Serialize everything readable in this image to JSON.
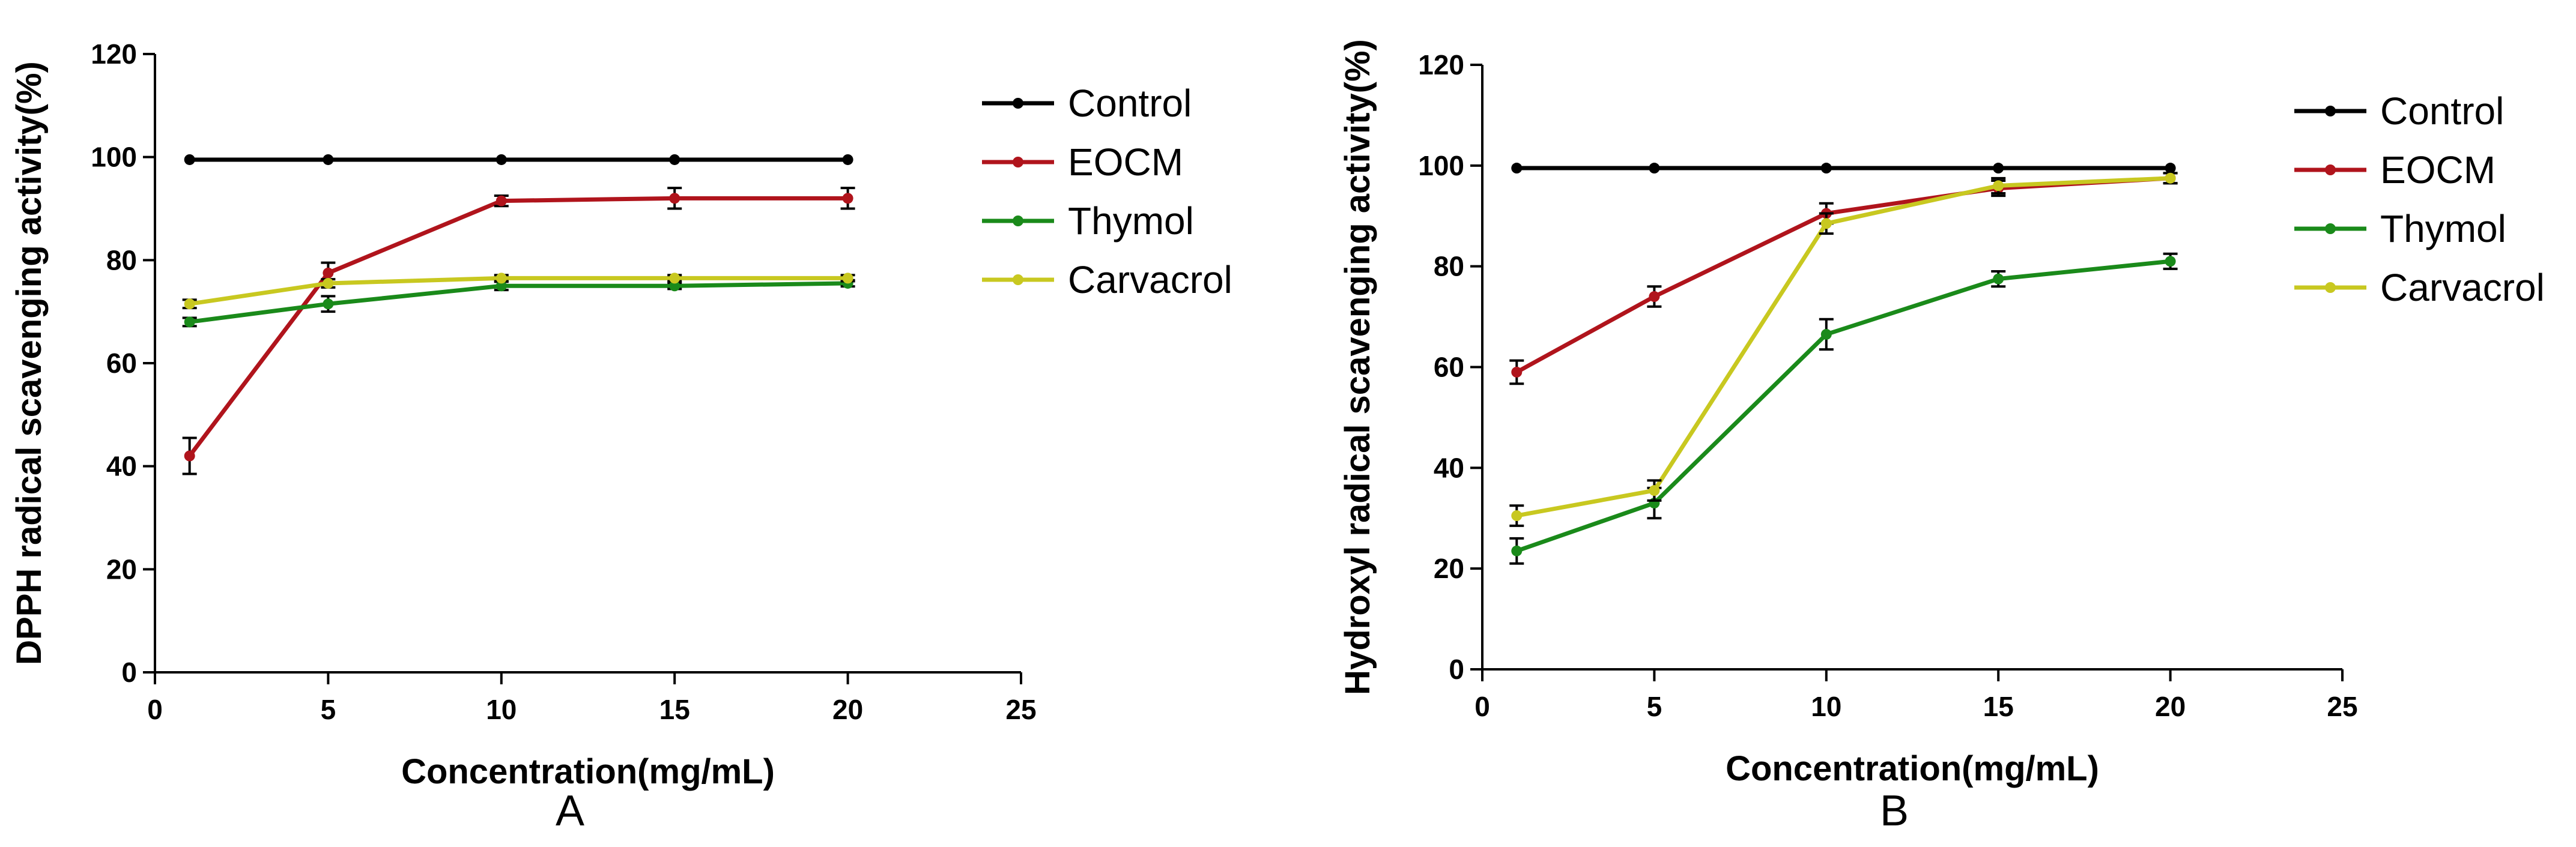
{
  "colors": {
    "Control": "#000000",
    "EOCM": "#b0141c",
    "Thymol": "#1a8a1a",
    "Carvacrol": "#c8c820",
    "axis": "#000000"
  },
  "chart_data": [
    {
      "type": "line",
      "panel_label": "A",
      "title": "",
      "xlabel": "Concentration(mg/mL)",
      "ylabel": "DPPH radical scavenging activity(%)",
      "xlim": [
        0,
        25
      ],
      "ylim": [
        0,
        120
      ],
      "xticks": [
        0,
        5,
        10,
        15,
        20,
        25
      ],
      "yticks": [
        0,
        20,
        40,
        60,
        80,
        100,
        120
      ],
      "legend_position": "right",
      "x": [
        1,
        5,
        10,
        15,
        20
      ],
      "series": [
        {
          "name": "Control",
          "values": [
            99.5,
            99.5,
            99.5,
            99.5,
            99.5
          ],
          "errors": [
            0,
            0,
            0,
            0,
            0
          ]
        },
        {
          "name": "EOCM",
          "values": [
            42,
            77.5,
            91.5,
            92,
            92
          ],
          "errors": [
            3.5,
            2,
            1,
            2,
            2
          ]
        },
        {
          "name": "Thymol",
          "values": [
            68,
            71.5,
            75,
            75,
            75.5
          ],
          "errors": [
            0.8,
            1.5,
            0.8,
            0.6,
            0.6
          ]
        },
        {
          "name": "Carvacrol",
          "values": [
            71.5,
            75.5,
            76.5,
            76.5,
            76.5
          ],
          "errors": [
            0.8,
            0.8,
            0.6,
            0.6,
            0.6
          ]
        }
      ]
    },
    {
      "type": "line",
      "panel_label": "B",
      "title": "",
      "xlabel": "Concentration(mg/mL)",
      "ylabel": "Hydroxyl radical scavenging activity(%)",
      "xlim": [
        0,
        25
      ],
      "ylim": [
        0,
        120
      ],
      "xticks": [
        0,
        5,
        10,
        15,
        20,
        25
      ],
      "yticks": [
        0,
        20,
        40,
        60,
        80,
        100,
        120
      ],
      "legend_position": "right",
      "x": [
        1,
        5,
        10,
        15,
        20
      ],
      "series": [
        {
          "name": "Control",
          "values": [
            99.5,
            99.5,
            99.5,
            99.5,
            99.5
          ],
          "errors": [
            0,
            0,
            0,
            0,
            0
          ]
        },
        {
          "name": "EOCM",
          "values": [
            59,
            74,
            90.5,
            95.5,
            97.5
          ],
          "errors": [
            2.3,
            2,
            2,
            1.5,
            1
          ]
        },
        {
          "name": "Thymol",
          "values": [
            23.5,
            33,
            66.5,
            77.5,
            81
          ],
          "errors": [
            2.5,
            3,
            3,
            1.5,
            1.5
          ]
        },
        {
          "name": "Carvacrol",
          "values": [
            30.5,
            35.5,
            88.5,
            96,
            97.5
          ],
          "errors": [
            2,
            2,
            2,
            1.5,
            1
          ]
        }
      ]
    }
  ]
}
